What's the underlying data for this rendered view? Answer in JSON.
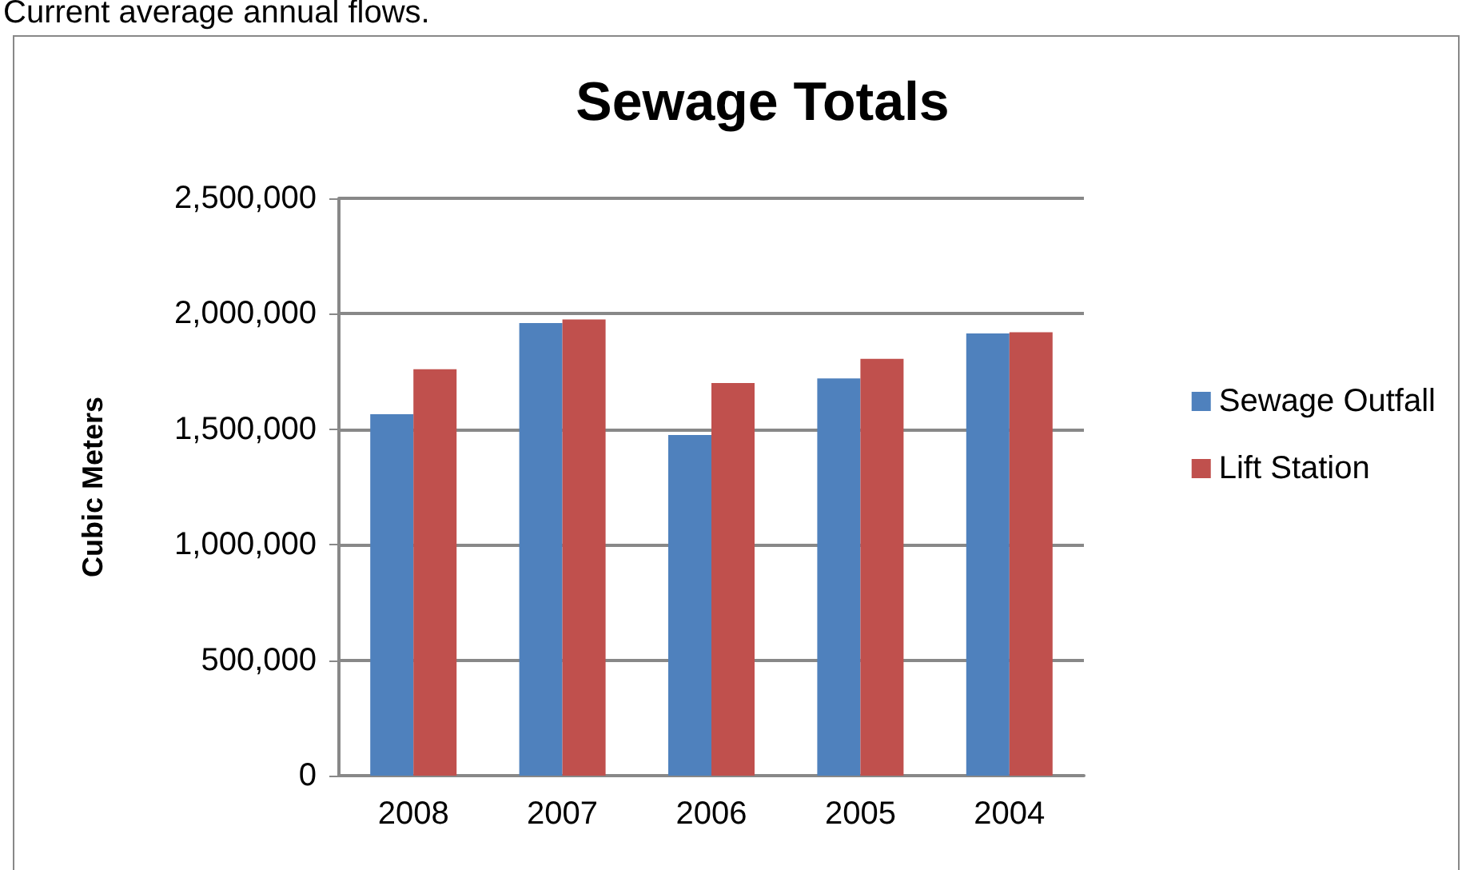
{
  "chart_data": {
    "type": "bar",
    "title": "Sewage Totals",
    "ylabel": "Cubic Meters",
    "annotations": [
      "Current average annual flows."
    ],
    "categories": [
      "2008",
      "2007",
      "2006",
      "2005",
      "2004"
    ],
    "series": [
      {
        "name": "Sewage Outfall",
        "color": "#4f81bd",
        "values": [
          1565000,
          1960000,
          1475000,
          1720000,
          1915000
        ]
      },
      {
        "name": "Lift Station",
        "color": "#c0504d",
        "values": [
          1760000,
          1975000,
          1700000,
          1805000,
          1920000
        ]
      }
    ],
    "ylim": [
      0,
      2500000
    ],
    "yticks": [
      0,
      {
        "value": 500000,
        "label": "500,000"
      },
      {
        "value": 1000000,
        "label": "1,000,000"
      },
      {
        "value": 1500000,
        "label": "1,500,000"
      },
      {
        "value": 2000000,
        "label": "2,000,000"
      },
      {
        "value": 2500000,
        "label": "2,500,000"
      }
    ],
    "grid": "y",
    "legend": "right"
  }
}
